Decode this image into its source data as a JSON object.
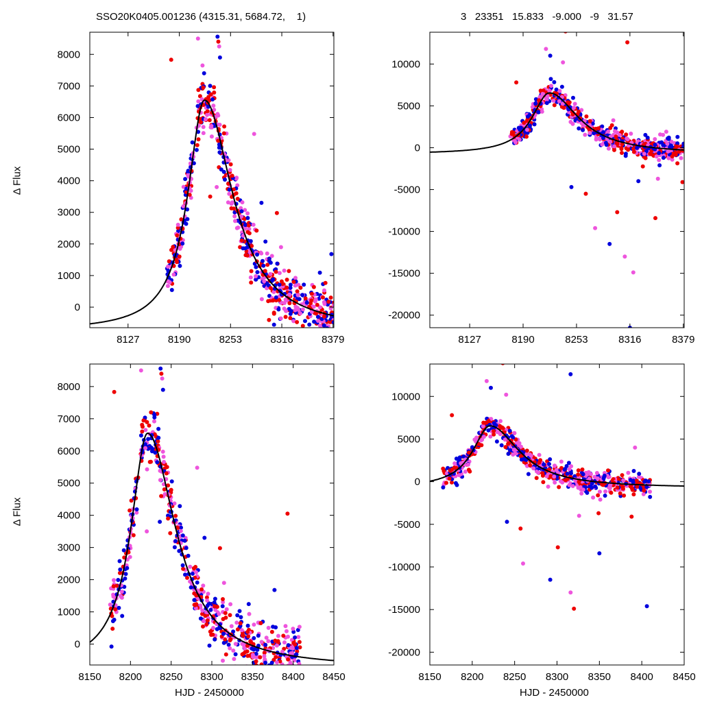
{
  "titles": {
    "left": "SSO20K0405.001236 (4315.31, 5684.72,    1)",
    "right": "3   23351   15.833   -9.000   -9   31.57"
  },
  "axis_labels": {
    "y": "Δ Flux",
    "x": "HJD - 2450000"
  },
  "colors": {
    "series_blue": "#0000dd",
    "series_red": "#ee0000",
    "series_magenta": "#ee55dd",
    "model": "#000000"
  },
  "chart_data": [
    {
      "id": "top-left",
      "type": "scatter",
      "title": "SSO20K0405.001236 (4315.31, 5684.72,    1)",
      "xlabel": "",
      "ylabel": "Δ Flux",
      "xlim": [
        8080,
        8380
      ],
      "ylim": [
        -650,
        8700
      ],
      "xticks": [
        8127,
        8190,
        8253,
        8316,
        8379
      ],
      "yticks": [
        0,
        1000,
        2000,
        3000,
        4000,
        5000,
        6000,
        7000,
        8000
      ],
      "model": {
        "t0": 8221,
        "peak": 6550,
        "tau_rise": 25,
        "tau_fall": 42,
        "base": -750
      },
      "data_start": 8175,
      "data_end": 8380,
      "scatter_sigma": 420,
      "outliers": [
        [
          8180,
          7830
        ],
        [
          8213,
          8500
        ],
        [
          8237,
          8560
        ],
        [
          8238,
          8400
        ],
        [
          8239,
          8250
        ],
        [
          8240,
          7900
        ],
        [
          8245,
          5500
        ],
        [
          8282,
          5480
        ],
        [
          8291,
          3300
        ],
        [
          8310,
          2980
        ],
        [
          8315,
          1900
        ],
        [
          8377,
          1680
        ],
        [
          8228,
          3500
        ],
        [
          8236,
          3800
        ]
      ],
      "grid": false
    },
    {
      "id": "top-right",
      "type": "scatter",
      "title": "3   23351   15.833   -9.000   -9   31.57",
      "xlabel": "",
      "ylabel": "",
      "xlim": [
        8080,
        8380
      ],
      "ylim": [
        -21500,
        13800
      ],
      "xticks": [
        8127,
        8190,
        8253,
        8316,
        8379
      ],
      "yticks": [
        -20000,
        -15000,
        -10000,
        -5000,
        0,
        5000,
        10000
      ],
      "model": {
        "t0": 8221,
        "peak": 6550,
        "tau_rise": 25,
        "tau_fall": 42,
        "base": -750
      },
      "data_start": 8175,
      "data_end": 8380,
      "scatter_sigma": 650,
      "outliers": [
        [
          8182,
          7800
        ],
        [
          8217,
          11800
        ],
        [
          8222,
          11000
        ],
        [
          8240,
          13900
        ],
        [
          8237,
          10200
        ],
        [
          8247,
          -4700
        ],
        [
          8264,
          -5500
        ],
        [
          8275,
          -9600
        ],
        [
          8292,
          -11500
        ],
        [
          8301,
          -7700
        ],
        [
          8310,
          -13000
        ],
        [
          8316,
          -21500
        ],
        [
          8313,
          12600
        ],
        [
          8320,
          -14900
        ],
        [
          8326,
          -4000
        ],
        [
          8346,
          -8400
        ],
        [
          8349,
          -3700
        ],
        [
          8351,
          -2100
        ],
        [
          8378,
          -4100
        ]
      ],
      "grid": false
    },
    {
      "id": "bottom-left",
      "type": "scatter",
      "title": "",
      "xlabel": "HJD - 2450000",
      "ylabel": "Δ Flux",
      "xlim": [
        8150,
        8450
      ],
      "ylim": [
        -650,
        8700
      ],
      "xticks": [
        8150,
        8200,
        8250,
        8300,
        8350,
        8400,
        8450
      ],
      "yticks": [
        0,
        1000,
        2000,
        3000,
        4000,
        5000,
        6000,
        7000,
        8000
      ],
      "model": {
        "t0": 8221,
        "peak": 6550,
        "tau_rise": 25,
        "tau_fall": 42,
        "base": -750
      },
      "data_start": 8175,
      "data_end": 8410,
      "scatter_sigma": 420,
      "outliers": [
        [
          8180,
          7830
        ],
        [
          8213,
          8500
        ],
        [
          8237,
          8560
        ],
        [
          8238,
          8400
        ],
        [
          8239,
          8250
        ],
        [
          8240,
          7900
        ],
        [
          8245,
          5500
        ],
        [
          8282,
          5480
        ],
        [
          8291,
          3300
        ],
        [
          8310,
          2980
        ],
        [
          8315,
          1900
        ],
        [
          8377,
          1680
        ],
        [
          8393,
          4050
        ],
        [
          8220,
          3500
        ],
        [
          8236,
          3800
        ]
      ],
      "grid": false
    },
    {
      "id": "bottom-right",
      "type": "scatter",
      "title": "",
      "xlabel": "HJD - 2450000",
      "ylabel": "",
      "xlim": [
        8150,
        8450
      ],
      "ylim": [
        -21500,
        13800
      ],
      "xticks": [
        8150,
        8200,
        8250,
        8300,
        8350,
        8400,
        8450
      ],
      "yticks": [
        -20000,
        -15000,
        -10000,
        -5000,
        0,
        5000,
        10000
      ],
      "model": {
        "t0": 8221,
        "peak": 6550,
        "tau_rise": 25,
        "tau_fall": 42,
        "base": -750
      },
      "data_start": 8165,
      "data_end": 8410,
      "scatter_sigma": 650,
      "outliers": [
        [
          8176,
          7800
        ],
        [
          8217,
          11800
        ],
        [
          8222,
          11000
        ],
        [
          8236,
          13900
        ],
        [
          8240,
          10200
        ],
        [
          8241,
          -4700
        ],
        [
          8257,
          -5500
        ],
        [
          8260,
          -9600
        ],
        [
          8292,
          -11500
        ],
        [
          8301,
          -7700
        ],
        [
          8316,
          -13000
        ],
        [
          8316,
          12600
        ],
        [
          8320,
          -14900
        ],
        [
          8326,
          -4000
        ],
        [
          8350,
          -8400
        ],
        [
          8349,
          -3700
        ],
        [
          8351,
          -2100
        ],
        [
          8406,
          -14600
        ],
        [
          8388,
          -4100
        ],
        [
          8392,
          4000
        ]
      ],
      "grid": false
    }
  ]
}
